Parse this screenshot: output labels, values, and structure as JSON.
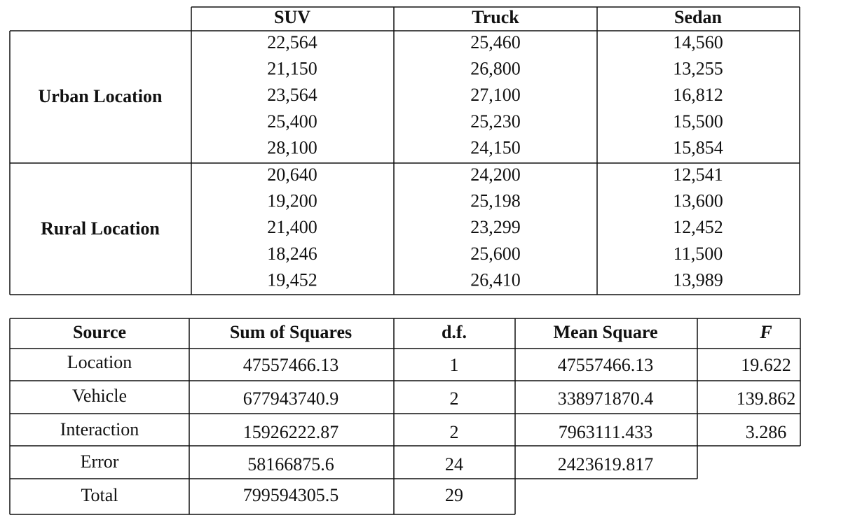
{
  "top_table": {
    "columns": [
      "SUV",
      "Truck",
      "Sedan"
    ],
    "groups": [
      {
        "label": "Urban Location",
        "rows": [
          [
            "22,564",
            "25,460",
            "14,560"
          ],
          [
            "21,150",
            "26,800",
            "13,255"
          ],
          [
            "23,564",
            "27,100",
            "16,812"
          ],
          [
            "25,400",
            "25,230",
            "15,500"
          ],
          [
            "28,100",
            "24,150",
            "15,854"
          ]
        ]
      },
      {
        "label": "Rural Location",
        "rows": [
          [
            "20,640",
            "24,200",
            "12,541"
          ],
          [
            "19,200",
            "25,198",
            "13,600"
          ],
          [
            "21,400",
            "23,299",
            "12,452"
          ],
          [
            "18,246",
            "25,600",
            "11,500"
          ],
          [
            "19,452",
            "26,410",
            "13,989"
          ]
        ]
      }
    ]
  },
  "anova_table": {
    "columns": [
      "Source",
      "Sum of Squares",
      "d.f.",
      "Mean Square",
      "F"
    ],
    "rows": [
      [
        "Location",
        "47557466.13",
        "1",
        "47557466.13",
        "19.622"
      ],
      [
        "Vehicle",
        "677943740.9",
        "2",
        "338971870.4",
        "139.862"
      ],
      [
        "Interaction",
        "15926222.87",
        "2",
        "7963111.433",
        "3.286"
      ],
      [
        "Error",
        "58166875.6",
        "24",
        "2423619.817"
      ],
      [
        "Total",
        "799594305.5",
        "29"
      ]
    ]
  }
}
